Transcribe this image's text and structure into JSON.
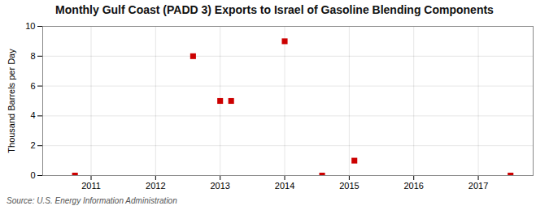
{
  "chart_data": {
    "type": "scatter",
    "title": "Monthly Gulf Coast (PADD 3) Exports to Israel of Gasoline Blending Components",
    "ylabel": "Thousand Barrels per Day",
    "source": "Source: U.S. Energy Information Administration",
    "x": [
      2010.75,
      2012.58,
      2013.0,
      2013.17,
      2014.0,
      2014.58,
      2015.08,
      2017.5
    ],
    "values": [
      0.0,
      8.0,
      5.0,
      5.0,
      9.0,
      0.0,
      1.0,
      0.0
    ],
    "color": "#cc0000",
    "marker": "square",
    "xlim": [
      2010.25,
      2017.85
    ],
    "xticks": [
      2011,
      2012,
      2013,
      2014,
      2015,
      2016,
      2017
    ],
    "ylim": [
      0,
      10
    ],
    "yticks": [
      0,
      2,
      4,
      6,
      8,
      10
    ],
    "grid": true
  }
}
